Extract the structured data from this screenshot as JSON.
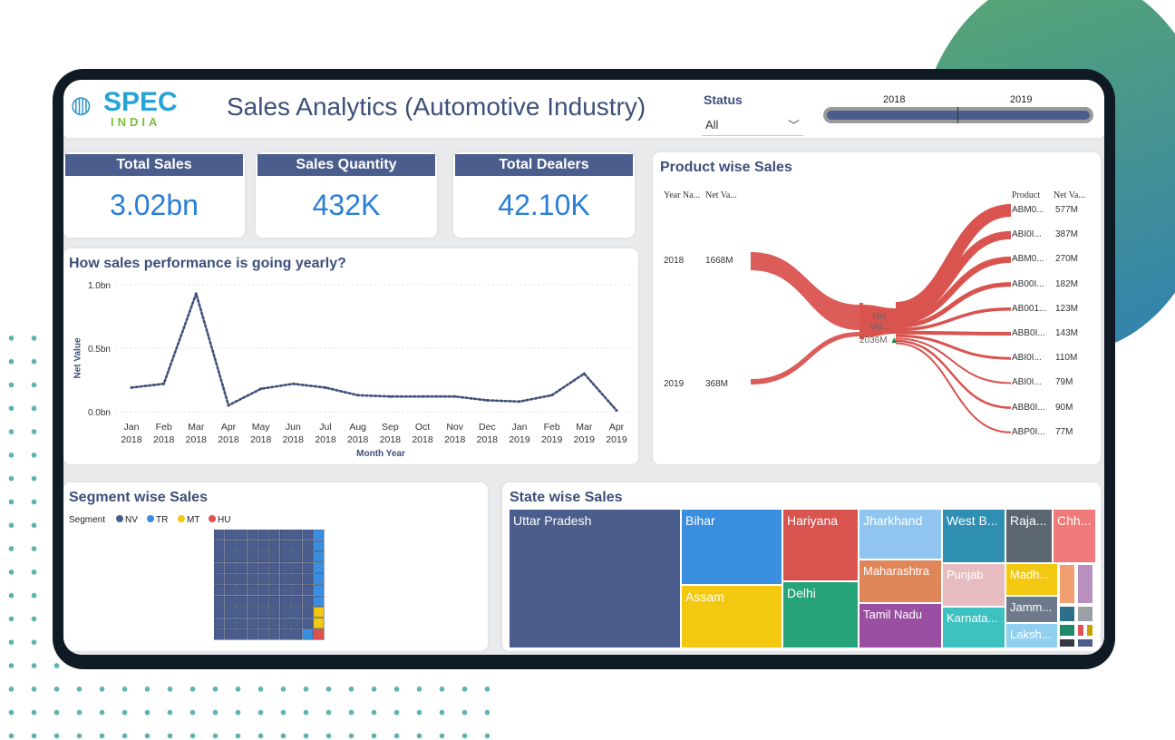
{
  "app": {
    "title": "Sales Analytics (Automotive Industry)",
    "logo": {
      "brand": "SPEC",
      "sub": "INDIA"
    }
  },
  "filters": {
    "status_label": "Status",
    "status_value": "All",
    "year_start": "2018",
    "year_end": "2019"
  },
  "kpis": [
    {
      "label": "Total Sales",
      "value": "3.02bn"
    },
    {
      "label": "Sales Quantity",
      "value": "432K"
    },
    {
      "label": "Total Dealers",
      "value": "42.10K"
    }
  ],
  "line_panel": {
    "title": "How sales performance is going yearly?",
    "ylabel": "Net Value",
    "xlabel": "Month Year"
  },
  "chart_data": {
    "type": "line",
    "title": "How sales performance is going yearly?",
    "xlabel": "Month Year",
    "ylabel": "Net Value",
    "ylim": [
      0,
      1.0
    ],
    "y_ticks": [
      "1.0bn",
      "0.5bn",
      "0.0bn"
    ],
    "x_months": [
      "Jan",
      "Feb",
      "Mar",
      "Apr",
      "May",
      "Jun",
      "Jul",
      "Aug",
      "Sep",
      "Oct",
      "Nov",
      "Dec",
      "Jan",
      "Feb",
      "Mar",
      "Apr"
    ],
    "x_years": [
      "2018",
      "2018",
      "2018",
      "2018",
      "2018",
      "2018",
      "2018",
      "2018",
      "2018",
      "2018",
      "2018",
      "2018",
      "2019",
      "2019",
      "2019",
      "2019"
    ],
    "values": [
      0.19,
      0.22,
      0.93,
      0.05,
      0.18,
      0.22,
      0.19,
      0.13,
      0.12,
      0.12,
      0.12,
      0.09,
      0.08,
      0.13,
      0.3,
      0.01
    ],
    "series_color": "#3d4f7a"
  },
  "product_panel": {
    "title": "Product wise Sales",
    "left_headers": [
      "Year Na...",
      "Net Va..."
    ],
    "right_headers": [
      "Product",
      "Net Va..."
    ],
    "years": [
      {
        "year": "2018",
        "value": "1668M"
      },
      {
        "year": "2019",
        "value": "368M"
      }
    ],
    "center_label": "Net Val...",
    "center_value": "2036M",
    "products": [
      {
        "name": "ABM0...",
        "value": "577M"
      },
      {
        "name": "ABI0I...",
        "value": "387M"
      },
      {
        "name": "ABM0...",
        "value": "270M"
      },
      {
        "name": "AB00I...",
        "value": "182M"
      },
      {
        "name": "AB001...",
        "value": "123M"
      },
      {
        "name": "ABB0I...",
        "value": "143M"
      },
      {
        "name": "ABI0I...",
        "value": "110M"
      },
      {
        "name": "ABI0I...",
        "value": "79M"
      },
      {
        "name": "ABB0I...",
        "value": "90M"
      },
      {
        "name": "ABP0I...",
        "value": "77M"
      }
    ],
    "flow_color": "#d9534f"
  },
  "segment_panel": {
    "title": "Segment wise Sales",
    "legend_label": "Segment",
    "legend": [
      {
        "name": "NV",
        "color": "#4a5d8c"
      },
      {
        "name": "TR",
        "color": "#3a8ee0"
      },
      {
        "name": "MT",
        "color": "#f2c811"
      },
      {
        "name": "HU",
        "color": "#e05252"
      }
    ]
  },
  "state_panel": {
    "title": "State wise Sales",
    "states": [
      {
        "name": "Uttar Pradesh",
        "color": "#4a5d8c"
      },
      {
        "name": "Bihar",
        "color": "#3a8ee0"
      },
      {
        "name": "Hariyana",
        "color": "#d9534f"
      },
      {
        "name": "Jharkhand",
        "color": "#8fc5ef"
      },
      {
        "name": "West B...",
        "color": "#2e8fb2"
      },
      {
        "name": "Raja...",
        "color": "#5b6670"
      },
      {
        "name": "Chh...",
        "color": "#f07a7a"
      },
      {
        "name": "Assam",
        "color": "#f2c811"
      },
      {
        "name": "Delhi",
        "color": "#27a37a"
      },
      {
        "name": "Maharashtra",
        "color": "#e0875a"
      },
      {
        "name": "Punjab",
        "color": "#e6bcc0"
      },
      {
        "name": "Madh...",
        "color": "#f2c811"
      },
      {
        "name": "Tamil Nadu",
        "color": "#9a4fa3"
      },
      {
        "name": "Karnata...",
        "color": "#3ec1c1"
      },
      {
        "name": "Jamm...",
        "color": "#6e7a8c"
      },
      {
        "name": "Laksh...",
        "color": "#8fd0f0"
      }
    ]
  }
}
